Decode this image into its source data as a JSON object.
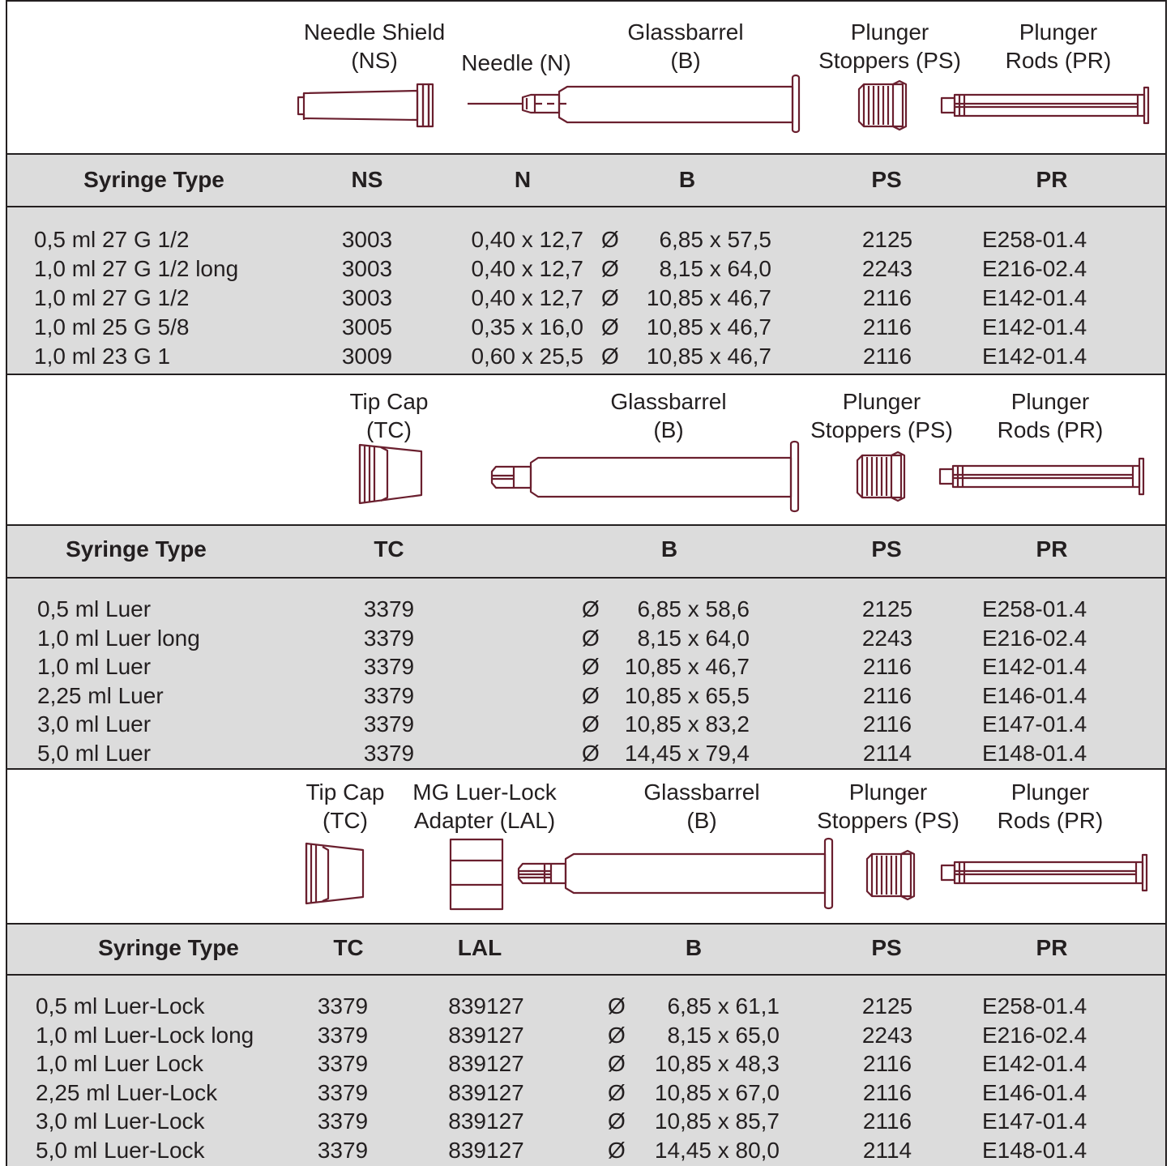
{
  "colors": {
    "header_band": "#dcdcdc",
    "data_band": "#dcdcdc",
    "drawing_band": "#ffffff",
    "drawing_stroke": "#6a1f2e",
    "text": "#231f20"
  },
  "icons": [
    "needle-shield-icon",
    "needle-icon",
    "glass-barrel-icon",
    "plunger-stopper-icon",
    "plunger-rod-icon",
    "tip-cap-icon",
    "luer-lock-adapter-icon"
  ],
  "sections": [
    {
      "labels": {
        "needle_shield": [
          "Needle Shield",
          "(NS)"
        ],
        "needle": "Needle (N)",
        "glassbarrel": [
          "Glassbarrel",
          "(B)"
        ],
        "plunger_stoppers": [
          "Plunger",
          "Stoppers (PS)"
        ],
        "plunger_rods": [
          "Plunger",
          "Rods (PR)"
        ]
      },
      "headers": [
        "Syringe Type",
        "NS",
        "N",
        "B",
        "PS",
        "PR"
      ],
      "rows": [
        [
          "0,5 ml 27 G 1/2",
          "3003",
          "0,40 x 12,7",
          "Ø",
          "6,85 x 57,5",
          "2125",
          "E258-01.4"
        ],
        [
          "1,0 ml 27 G 1/2 long",
          "3003",
          "0,40 x 12,7",
          "Ø",
          "8,15 x 64,0",
          "2243",
          "E216-02.4"
        ],
        [
          "1,0 ml 27 G 1/2",
          "3003",
          "0,40 x 12,7",
          "Ø",
          "10,85 x 46,7",
          "2116",
          "E142-01.4"
        ],
        [
          "1,0 ml 25 G 5/8",
          "3005",
          "0,35 x 16,0",
          "Ø",
          "10,85 x 46,7",
          "2116",
          "E142-01.4"
        ],
        [
          "1,0 ml 23 G 1",
          "3009",
          "0,60 x 25,5",
          "Ø",
          "10,85 x 46,7",
          "2116",
          "E142-01.4"
        ]
      ]
    },
    {
      "labels": {
        "tip_cap": [
          "Tip Cap",
          "(TC)"
        ],
        "glassbarrel": [
          "Glassbarrel",
          "(B)"
        ],
        "plunger_stoppers": [
          "Plunger",
          "Stoppers (PS)"
        ],
        "plunger_rods": [
          "Plunger",
          "Rods (PR)"
        ]
      },
      "headers": [
        "Syringe Type",
        "TC",
        "B",
        "PS",
        "PR"
      ],
      "rows": [
        [
          "0,5 ml Luer",
          "3379",
          "Ø",
          "6,85 x 58,6",
          "2125",
          "E258-01.4"
        ],
        [
          "1,0 ml Luer long",
          "3379",
          "Ø",
          "8,15 x 64,0",
          "2243",
          "E216-02.4"
        ],
        [
          "1,0 ml Luer",
          "3379",
          "Ø",
          "10,85 x 46,7",
          "2116",
          "E142-01.4"
        ],
        [
          "2,25 ml Luer",
          "3379",
          "Ø",
          "10,85 x 65,5",
          "2116",
          "E146-01.4"
        ],
        [
          "3,0 ml Luer",
          "3379",
          "Ø",
          "10,85 x 83,2",
          "2116",
          "E147-01.4"
        ],
        [
          "5,0 ml Luer",
          "3379",
          "Ø",
          "14,45 x 79,4",
          "2114",
          "E148-01.4"
        ]
      ]
    },
    {
      "labels": {
        "tip_cap": [
          "Tip Cap",
          "(TC)"
        ],
        "luer_lock_adapter": [
          "MG Luer-Lock",
          "Adapter (LAL)"
        ],
        "glassbarrel": [
          "Glassbarrel",
          "(B)"
        ],
        "plunger_stoppers": [
          "Plunger",
          "Stoppers (PS)"
        ],
        "plunger_rods": [
          "Plunger",
          "Rods (PR)"
        ]
      },
      "headers": [
        "Syringe Type",
        "TC",
        "LAL",
        "B",
        "PS",
        "PR"
      ],
      "rows": [
        [
          "0,5 ml Luer-Lock",
          "3379",
          "839127",
          "Ø",
          "6,85 x 61,1",
          "2125",
          "E258-01.4"
        ],
        [
          "1,0 ml Luer-Lock long",
          "3379",
          "839127",
          "Ø",
          "8,15 x 65,0",
          "2243",
          "E216-02.4"
        ],
        [
          "1,0 ml Luer Lock",
          "3379",
          "839127",
          "Ø",
          "10,85 x 48,3",
          "2116",
          "E142-01.4"
        ],
        [
          "2,25 ml Luer-Lock",
          "3379",
          "839127",
          "Ø",
          "10,85 x 67,0",
          "2116",
          "E146-01.4"
        ],
        [
          "3,0 ml Luer-Lock",
          "3379",
          "839127",
          "Ø",
          "10,85 x 85,7",
          "2116",
          "E147-01.4"
        ],
        [
          "5,0 ml Luer-Lock",
          "3379",
          "839127",
          "Ø",
          "14,45 x 80,0",
          "2114",
          "E148-01.4"
        ]
      ]
    }
  ]
}
